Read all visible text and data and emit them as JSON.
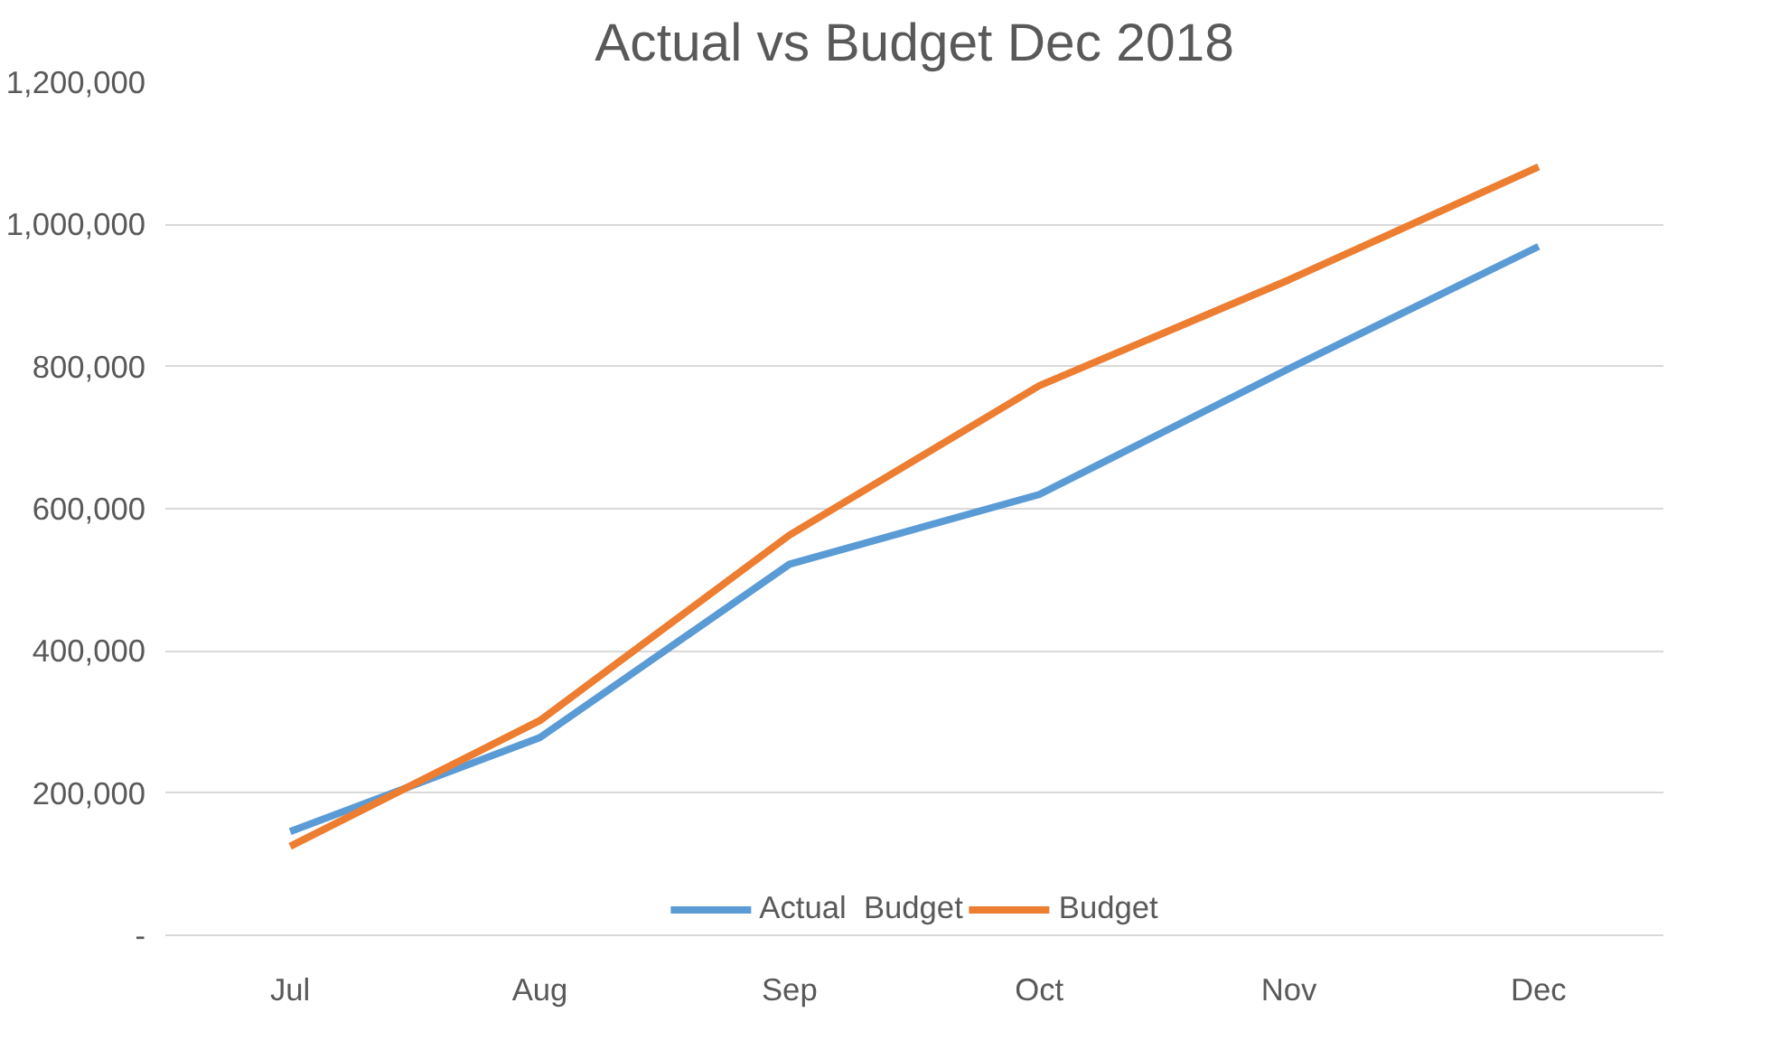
{
  "chart_data": {
    "type": "line",
    "title": "Actual vs Budget Dec 2018",
    "categories": [
      "Jul",
      "Aug",
      "Sep",
      "Oct",
      "Nov",
      "Dec"
    ],
    "series": [
      {
        "name": "Actual  Budget",
        "color": "#5b9bd5",
        "values": [
          146000,
          278000,
          522000,
          620000,
          797000,
          969000
        ]
      },
      {
        "name": "Budget",
        "color": "#ed7d31",
        "values": [
          125000,
          302000,
          563000,
          773000,
          922000,
          1081000
        ]
      }
    ],
    "ylim": [
      0,
      1200000
    ],
    "yticks": [
      {
        "value": 0,
        "label": "-"
      },
      {
        "value": 200000,
        "label": "200,000"
      },
      {
        "value": 400000,
        "label": "400,000"
      },
      {
        "value": 600000,
        "label": "600,000"
      },
      {
        "value": 800000,
        "label": "800,000"
      },
      {
        "value": 1000000,
        "label": "1,000,000"
      },
      {
        "value": 1200000,
        "label": "1,200,000"
      }
    ],
    "grid": "y",
    "legend": "bottom",
    "marker": "none",
    "line_style": "solid"
  }
}
